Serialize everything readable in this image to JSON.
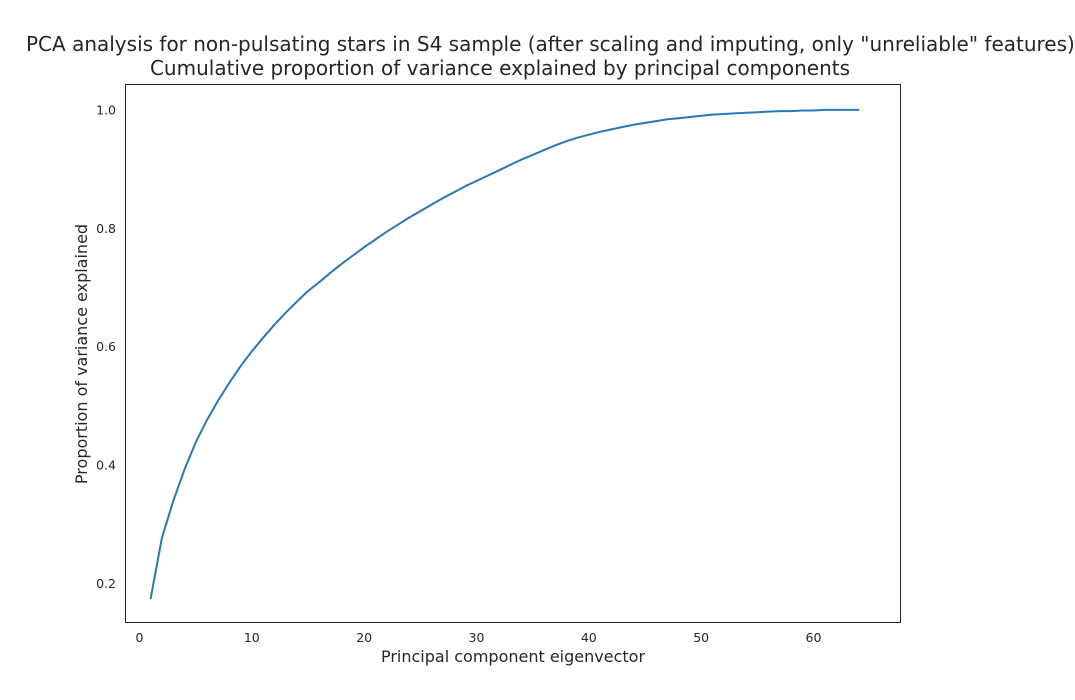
{
  "chart_data": {
    "type": "line",
    "title": "PCA analysis for non-pulsating stars in S4 sample (after scaling and imputing, only \"unreliable\" features)",
    "subtitle": "Cumulative proportion of variance explained by principal components",
    "xlabel": "Principal component eigenvector",
    "ylabel": "Proportion of variance explained",
    "xlim": [
      -1.2,
      67.7
    ],
    "ylim": [
      0.135,
      1.042
    ],
    "xticks": [
      0,
      10,
      20,
      30,
      40,
      50,
      60
    ],
    "yticks": [
      0.2,
      0.4,
      0.6,
      0.8,
      1.0
    ],
    "xtick_labels": [
      "0",
      "10",
      "20",
      "30",
      "40",
      "50",
      "60"
    ],
    "ytick_labels": [
      "0.2",
      "0.4",
      "0.6",
      "0.8",
      "1.0"
    ],
    "grid": false,
    "line_color": "#2a77b4",
    "series": [
      {
        "x": [
          1,
          2,
          3,
          4,
          5,
          6,
          7,
          8,
          9,
          10,
          11,
          12,
          13,
          14,
          15,
          16,
          17,
          18,
          19,
          20,
          21,
          22,
          23,
          24,
          25,
          26,
          27,
          28,
          29,
          30,
          31,
          32,
          33,
          34,
          35,
          36,
          37,
          38,
          39,
          40,
          41,
          42,
          43,
          44,
          45,
          46,
          47,
          48,
          49,
          50,
          51,
          52,
          53,
          54,
          55,
          56,
          57,
          58,
          59,
          60,
          61,
          62,
          63,
          64
        ],
        "values": [
          0.175,
          0.277,
          0.339,
          0.392,
          0.438,
          0.476,
          0.509,
          0.539,
          0.567,
          0.592,
          0.615,
          0.637,
          0.657,
          0.676,
          0.694,
          0.709,
          0.725,
          0.74,
          0.754,
          0.768,
          0.781,
          0.794,
          0.806,
          0.818,
          0.829,
          0.84,
          0.851,
          0.861,
          0.871,
          0.88,
          0.889,
          0.898,
          0.907,
          0.916,
          0.924,
          0.932,
          0.94,
          0.947,
          0.953,
          0.958,
          0.963,
          0.967,
          0.971,
          0.975,
          0.978,
          0.981,
          0.984,
          0.986,
          0.988,
          0.99,
          0.992,
          0.993,
          0.994,
          0.995,
          0.996,
          0.997,
          0.998,
          0.998,
          0.999,
          0.999,
          1.0,
          1.0,
          1.0,
          1.0
        ]
      }
    ]
  }
}
